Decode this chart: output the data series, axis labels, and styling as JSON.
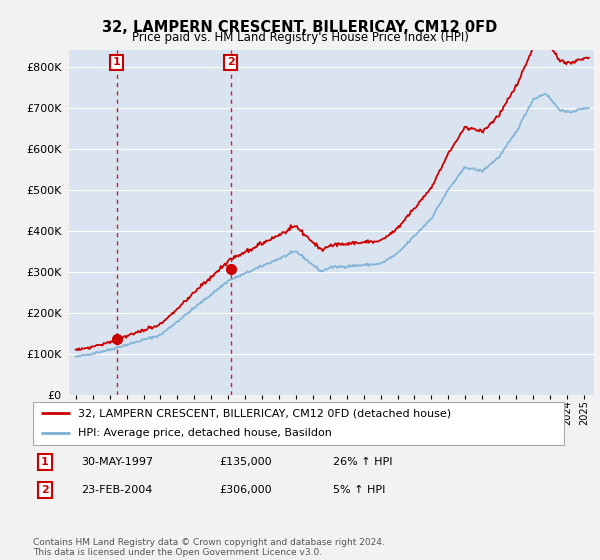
{
  "title": "32, LAMPERN CRESCENT, BILLERICAY, CM12 0FD",
  "subtitle": "Price paid vs. HM Land Registry's House Price Index (HPI)",
  "legend_line1": "32, LAMPERN CRESCENT, BILLERICAY, CM12 0FD (detached house)",
  "legend_line2": "HPI: Average price, detached house, Basildon",
  "transaction1_date": "30-MAY-1997",
  "transaction1_price": "£135,000",
  "transaction1_hpi": "26% ↑ HPI",
  "transaction2_date": "23-FEB-2004",
  "transaction2_price": "£306,000",
  "transaction2_hpi": "5% ↑ HPI",
  "footnote": "Contains HM Land Registry data © Crown copyright and database right 2024.\nThis data is licensed under the Open Government Licence v3.0.",
  "hpi_color": "#7bafd4",
  "price_color": "#cc0000",
  "marker_color": "#cc0000",
  "plot_bg": "#d9e4f0",
  "fig_bg": "#f2f2f2",
  "grid_color": "#ffffff",
  "yticks": [
    0,
    100000,
    200000,
    300000,
    400000,
    500000,
    600000,
    700000,
    800000
  ],
  "t1_year": 1997.41,
  "t1_price": 135000,
  "t2_year": 2004.14,
  "t2_price": 306000
}
